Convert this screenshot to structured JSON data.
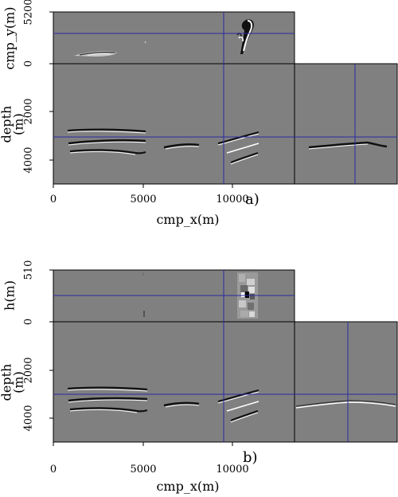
{
  "panel_a": {
    "label": "a)",
    "top_axis_label": "cmp_y(m)",
    "top_ticks": [
      "5200",
      "0"
    ],
    "depth_label_1": "depth",
    "depth_label_2": "(m)",
    "depth_ticks": [
      "2000",
      "4000"
    ],
    "x_axis_label": "cmp_x(m)",
    "x_ticks": [
      "0",
      "5000",
      "10000"
    ]
  },
  "panel_b": {
    "label": "b)",
    "top_axis_label": "h(m)",
    "top_ticks": [
      "510",
      "0"
    ],
    "depth_label_1": "depth",
    "depth_label_2": "(m)",
    "depth_ticks": [
      "2000",
      "4000"
    ],
    "x_axis_label": "cmp_x(m)",
    "x_ticks": [
      "0",
      "5000",
      "10000"
    ]
  },
  "colors": {
    "background_gray": "#808080",
    "crosshair": "#2a2aa0",
    "frame": "#000000"
  }
}
